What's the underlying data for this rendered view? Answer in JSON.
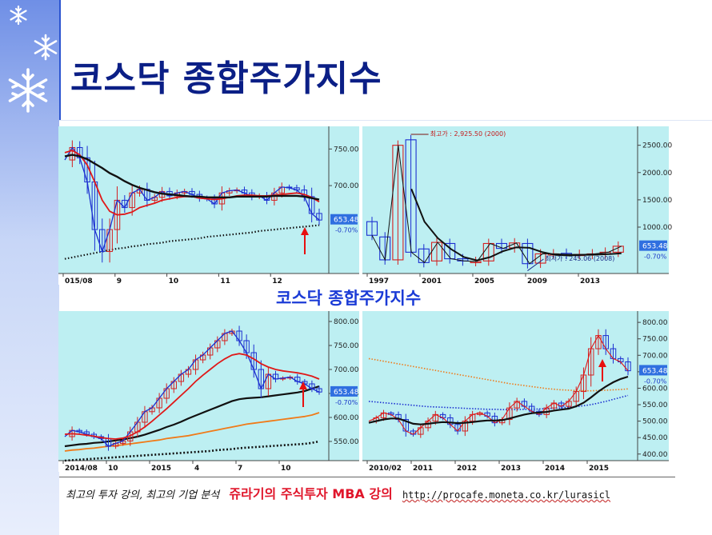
{
  "slide": {
    "title": "코스닥 종합주가지수",
    "subtitle": "코스닥 종합주가지수",
    "footer": {
      "tagline": "최고의 투자 강의, 최고의 기업 분석",
      "lecture": "쥬라기의 주식투자 MBA 강의",
      "url": "http://procafe.moneta.co.kr/lurasicl"
    }
  },
  "colors": {
    "sidebar": "#9db4ef",
    "title": "#0b1f86",
    "panel_bg": "#bdeff2",
    "candle_up": "#d42020",
    "candle_down": "#1c2fd0",
    "ma_black": "#111111",
    "ma_red": "#e01818",
    "ma_orange": "#f07a18",
    "badge": "#2f6fe0",
    "arrow": "#e81010"
  },
  "chart_data": [
    {
      "type": "line",
      "name": "panel-daily-2015",
      "x_labels": [
        "015/08",
        "9",
        "10",
        "11",
        "12"
      ],
      "y_ticks": [
        700.0,
        750.0
      ],
      "y_tick_labels": [
        "700.00",
        "750.00"
      ],
      "ylim": [
        580,
        770
      ],
      "last_value": "653.48",
      "change": "-0.70%",
      "close_path": [
        735,
        752,
        738,
        705,
        640,
        610,
        640,
        680,
        670,
        690,
        695,
        680,
        684,
        692,
        686,
        690,
        692,
        688,
        683,
        682,
        675,
        690,
        693,
        694,
        690,
        685,
        686,
        680,
        690,
        698,
        697,
        694,
        685,
        662,
        653
      ],
      "ma_black": [
        740,
        742,
        740,
        736,
        730,
        724,
        717,
        712,
        706,
        701,
        697,
        694,
        691,
        689,
        688,
        687,
        686,
        685,
        685,
        684,
        684,
        684,
        684,
        685,
        685,
        685,
        685,
        685,
        686,
        686,
        686,
        686,
        685,
        683,
        681
      ],
      "ma_red": [
        745,
        748,
        742,
        728,
        705,
        680,
        665,
        660,
        661,
        664,
        670,
        673,
        676,
        680,
        682,
        684,
        685,
        685,
        683,
        682,
        681,
        682,
        684,
        686,
        687,
        687,
        686,
        686,
        687,
        688,
        689,
        690,
        688,
        684,
        678
      ],
      "ma_dotted_long": [
        600,
        602,
        604,
        606,
        608,
        610,
        612,
        614,
        615,
        617,
        618,
        620,
        621,
        622,
        624,
        625,
        626,
        627,
        628,
        630,
        631,
        632,
        633,
        634,
        635,
        636,
        638,
        639,
        640,
        641,
        642,
        643,
        644,
        645,
        646
      ],
      "arrow": "up"
    },
    {
      "type": "line",
      "name": "panel-yearly",
      "x_labels": [
        "1997",
        "2001",
        "2005",
        "2009",
        "2013"
      ],
      "y_ticks": [
        1000,
        1500,
        2000,
        2500
      ],
      "y_tick_labels": [
        "1000.00",
        "1500.00",
        "2000.00",
        "2500.00"
      ],
      "ylim": [
        150,
        2700
      ],
      "annotations": [
        {
          "label": "최고가 : 2,925.50 (2000)",
          "value": 2925.5,
          "year": 2000
        },
        {
          "label": "최저가 : 245.06 (2008)",
          "value": 245.06,
          "year": 2008
        }
      ],
      "last_value": "653.48",
      "change": "-0.70%",
      "candles": [
        {
          "year": 1996,
          "open": 1100,
          "close": 850
        },
        {
          "year": 1997,
          "open": 820,
          "close": 400
        },
        {
          "year": 1998,
          "open": 400,
          "close": 2500
        },
        {
          "year": 1999,
          "open": 2600,
          "close": 540
        },
        {
          "year": 2000,
          "open": 600,
          "close": 350
        },
        {
          "year": 2001,
          "open": 380,
          "close": 720
        },
        {
          "year": 2002,
          "open": 700,
          "close": 420
        },
        {
          "year": 2003,
          "open": 420,
          "close": 380
        },
        {
          "year": 2004,
          "open": 370,
          "close": 370
        },
        {
          "year": 2005,
          "open": 380,
          "close": 700
        },
        {
          "year": 2006,
          "open": 700,
          "close": 610
        },
        {
          "year": 2007,
          "open": 620,
          "close": 710
        },
        {
          "year": 2008,
          "open": 700,
          "close": 330
        },
        {
          "year": 2009,
          "open": 340,
          "close": 510
        },
        {
          "year": 2010,
          "open": 510,
          "close": 510
        },
        {
          "year": 2011,
          "open": 520,
          "close": 500
        },
        {
          "year": 2012,
          "open": 500,
          "close": 500
        },
        {
          "year": 2013,
          "open": 500,
          "close": 510
        },
        {
          "year": 2014,
          "open": 510,
          "close": 540
        },
        {
          "year": 2015,
          "open": 540,
          "close": 650
        }
      ],
      "ma_black": [
        null,
        null,
        null,
        1700,
        1100,
        800,
        600,
        450,
        390,
        450,
        560,
        630,
        620,
        540,
        490,
        480,
        490,
        495,
        505,
        520
      ]
    },
    {
      "type": "line",
      "name": "panel-daily-2014-2015",
      "x_labels": [
        "2014/08",
        "10",
        "2015",
        "4",
        "7",
        "10"
      ],
      "y_ticks": [
        550,
        600,
        650,
        700,
        750,
        800
      ],
      "y_tick_labels": [
        "550.00",
        "600.00",
        "650.00",
        "700.00",
        "750.00",
        "800.00"
      ],
      "ylim": [
        510,
        805
      ],
      "last_value": "653.48",
      "change": "-0.70%",
      "close_path": [
        560,
        573,
        570,
        565,
        560,
        556,
        540,
        546,
        551,
        570,
        590,
        612,
        620,
        640,
        660,
        675,
        690,
        700,
        720,
        730,
        745,
        760,
        775,
        780,
        760,
        735,
        700,
        660,
        690,
        680,
        682,
        684,
        675,
        670,
        660,
        653
      ],
      "ma_red": [
        565,
        566,
        565,
        563,
        561,
        558,
        556,
        555,
        557,
        562,
        570,
        580,
        592,
        605,
        618,
        632,
        646,
        660,
        675,
        688,
        700,
        712,
        722,
        730,
        733,
        730,
        722,
        712,
        705,
        700,
        697,
        695,
        693,
        690,
        686,
        680
      ],
      "ma_black": [
        540,
        542,
        544,
        545,
        547,
        548,
        550,
        552,
        554,
        557,
        560,
        564,
        569,
        574,
        580,
        585,
        591,
        598,
        604,
        610,
        616,
        622,
        628,
        634,
        638,
        640,
        641,
        642,
        644,
        646,
        648,
        650,
        652,
        655,
        660,
        665
      ],
      "ma_orange": [
        530,
        532,
        533,
        535,
        536,
        538,
        540,
        541,
        543,
        545,
        547,
        549,
        551,
        553,
        556,
        558,
        560,
        562,
        565,
        568,
        571,
        574,
        577,
        580,
        583,
        586,
        588,
        590,
        592,
        594,
        596,
        598,
        600,
        602,
        605,
        610
      ],
      "ma_dotted": [
        510,
        511,
        512,
        513,
        514,
        515,
        516,
        517,
        518,
        519,
        520,
        521,
        522,
        523,
        524,
        525,
        526,
        527,
        528,
        529,
        530,
        532,
        533,
        534,
        536,
        537,
        538,
        539,
        540,
        541,
        542,
        543,
        544,
        545,
        547,
        550
      ],
      "arrow": "up"
    },
    {
      "type": "line",
      "name": "panel-weekly-2010",
      "x_labels": [
        "2010/02",
        "2011",
        "2012",
        "2013",
        "2014",
        "2015"
      ],
      "y_ticks": [
        400,
        450,
        500,
        550,
        600,
        650,
        700,
        750,
        800
      ],
      "y_tick_labels": [
        "400.00",
        "450.00",
        "500.00",
        "550.00",
        "600.00",
        "650.00",
        "700.00",
        "750.00",
        "800.00"
      ],
      "ylim": [
        380,
        810
      ],
      "last_value": "653.48",
      "change": "-0.70%",
      "close_path": [
        500,
        510,
        525,
        520,
        505,
        470,
        460,
        480,
        500,
        520,
        510,
        490,
        470,
        500,
        520,
        525,
        515,
        495,
        505,
        540,
        560,
        545,
        530,
        520,
        540,
        555,
        545,
        560,
        590,
        640,
        720,
        760,
        720,
        690,
        680,
        653
      ],
      "ma_black": [
        495,
        500,
        505,
        508,
        508,
        500,
        492,
        490,
        492,
        495,
        497,
        496,
        494,
        495,
        497,
        500,
        502,
        502,
        503,
        508,
        514,
        520,
        524,
        526,
        528,
        532,
        535,
        538,
        545,
        556,
        572,
        590,
        605,
        618,
        628,
        635
      ],
      "ma_orange_dotted": [
        690,
        686,
        682,
        678,
        674,
        670,
        666,
        662,
        658,
        654,
        650,
        646,
        642,
        638,
        634,
        630,
        626,
        622,
        618,
        614,
        611,
        608,
        605,
        602,
        599,
        597,
        595,
        594,
        593,
        592,
        592,
        593,
        594,
        595,
        596,
        598
      ],
      "ma_blue_dotted": [
        560,
        558,
        556,
        554,
        552,
        550,
        548,
        546,
        544,
        543,
        542,
        541,
        540,
        539,
        538,
        537,
        536,
        536,
        535,
        535,
        535,
        536,
        536,
        537,
        538,
        539,
        540,
        542,
        544,
        547,
        550,
        555,
        560,
        566,
        572,
        578
      ],
      "arrow": "up"
    }
  ]
}
